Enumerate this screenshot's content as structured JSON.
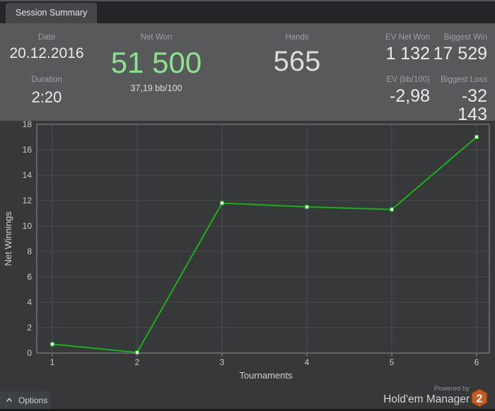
{
  "tab": {
    "label": "Session Summary"
  },
  "stats": {
    "date": {
      "label": "Date",
      "value": "20.12.2016"
    },
    "duration": {
      "label": "Duration",
      "value": "2:20"
    },
    "net_won": {
      "label": "Net Won",
      "value": "51 500",
      "sub": "37,19 bb/100"
    },
    "hands": {
      "label": "Hands",
      "value": "565"
    },
    "ev_net_won": {
      "label": "EV Net Won",
      "value": "1 132"
    },
    "ev_bb100": {
      "label": "EV (bb/100)",
      "value": "-2,98"
    },
    "biggest_win": {
      "label": "Biggest Win",
      "value": "17 529"
    },
    "biggest_loss": {
      "label": "Biggest Loss",
      "value": "-32 143"
    }
  },
  "chart_data": {
    "type": "line",
    "x": [
      1,
      2,
      3,
      4,
      5,
      6
    ],
    "values": [
      0.7,
      0.05,
      11.8,
      11.5,
      11.3,
      17.0
    ],
    "xlabel": "Tournaments",
    "ylabel": "Net Winnings",
    "xlim": [
      1,
      6
    ],
    "ylim": [
      0,
      18
    ],
    "x_ticks": [
      1,
      2,
      3,
      4,
      5,
      6
    ],
    "y_ticks": [
      0,
      2,
      4,
      6,
      8,
      10,
      12,
      14,
      16,
      18
    ],
    "grid": true,
    "legend": false,
    "line_color": "#1ab01a",
    "marker_fill": "#f4fff4",
    "colors": {
      "axis": "#8a8d8f",
      "grid_h": "#46484b",
      "grid_v": "#4c4f52",
      "background": "#36383a"
    }
  },
  "footer": {
    "options_label": "Options",
    "powered_by": "Powered by",
    "brand": "Hold'em Manager",
    "logo_text": "2",
    "logo_color": "#c75b26"
  },
  "colors": {
    "accent_green_text": "#8de18f",
    "stats_background": "#57595b",
    "tab_background": "#454748"
  }
}
